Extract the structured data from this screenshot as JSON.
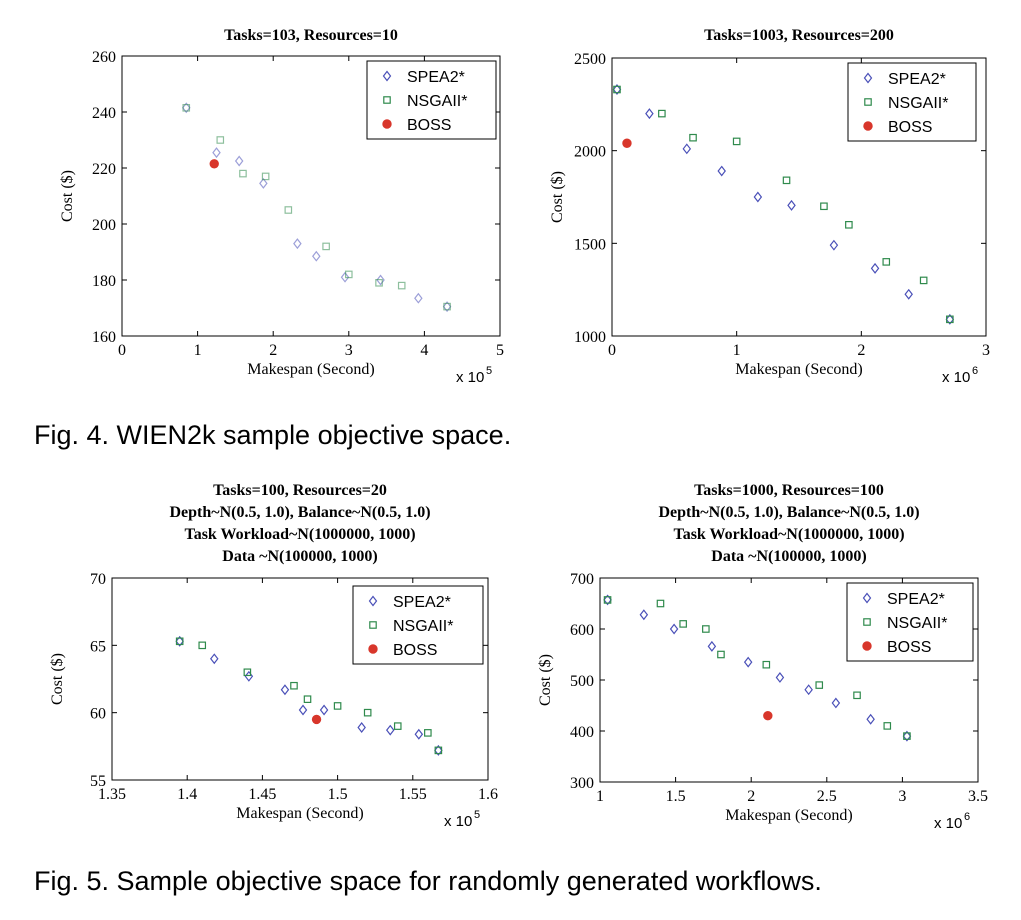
{
  "captions": {
    "fig4": "Fig. 4. WIEN2k sample objective space.",
    "fig5": "Fig. 5. Sample objective space for randomly generated workflows."
  },
  "colors": {
    "spea2": "#4a50b8",
    "nsgaii": "#2f8a4c",
    "boss": "#d8362b"
  },
  "chart_data": [
    {
      "type": "scatter",
      "title": [
        "Tasks=103, Resources=10"
      ],
      "xlabel": "Makespan (Second)",
      "ylabel": "Cost ($)",
      "x_multiplier": "x 10",
      "x_exponent": "5",
      "xlim": [
        0,
        5
      ],
      "ylim": [
        160,
        260
      ],
      "xticks": [
        0,
        1,
        2,
        3,
        4,
        5
      ],
      "yticks": [
        160,
        180,
        200,
        220,
        240,
        260
      ],
      "faded": true,
      "legend_position": "top-right",
      "series": [
        {
          "name": "SPEA2*",
          "marker": "diamond",
          "color": "#4a50b8",
          "points": [
            [
              0.85,
              241.5
            ],
            [
              1.25,
              225.5
            ],
            [
              1.55,
              222.5
            ],
            [
              1.87,
              214.5
            ],
            [
              2.32,
              193
            ],
            [
              2.57,
              188.5
            ],
            [
              2.95,
              181
            ],
            [
              3.42,
              180
            ],
            [
              3.92,
              173.5
            ],
            [
              4.3,
              170.5
            ]
          ]
        },
        {
          "name": "NSGAII*",
          "marker": "square",
          "color": "#2f8a4c",
          "points": [
            [
              0.85,
              241.5
            ],
            [
              1.3,
              230
            ],
            [
              1.6,
              218
            ],
            [
              1.9,
              217
            ],
            [
              2.2,
              205
            ],
            [
              2.7,
              192
            ],
            [
              3.0,
              182
            ],
            [
              3.4,
              179
            ],
            [
              3.7,
              178
            ],
            [
              4.3,
              170.5
            ]
          ]
        },
        {
          "name": "BOSS",
          "marker": "circle",
          "color": "#d8362b",
          "points": [
            [
              1.22,
              221.5
            ]
          ]
        }
      ]
    },
    {
      "type": "scatter",
      "title": [
        "Tasks=1003, Resources=200"
      ],
      "xlabel": "Makespan (Second)",
      "ylabel": "Cost ($)",
      "x_multiplier": "x 10",
      "x_exponent": "6",
      "xlim": [
        0,
        3
      ],
      "ylim": [
        1000,
        2500
      ],
      "xticks": [
        0,
        1,
        2,
        3
      ],
      "yticks": [
        1000,
        1500,
        2000,
        2500
      ],
      "faded": false,
      "legend_position": "top-right",
      "series": [
        {
          "name": "SPEA2*",
          "marker": "diamond",
          "color": "#4a50b8",
          "points": [
            [
              0.04,
              2330
            ],
            [
              0.3,
              2200
            ],
            [
              0.6,
              2010
            ],
            [
              0.88,
              1890
            ],
            [
              1.17,
              1750
            ],
            [
              1.44,
              1705
            ],
            [
              1.78,
              1490
            ],
            [
              2.11,
              1365
            ],
            [
              2.38,
              1225
            ],
            [
              2.71,
              1090
            ]
          ]
        },
        {
          "name": "NSGAII*",
          "marker": "square",
          "color": "#2f8a4c",
          "points": [
            [
              0.04,
              2330
            ],
            [
              0.4,
              2200
            ],
            [
              0.65,
              2070
            ],
            [
              1.0,
              2050
            ],
            [
              1.4,
              1840
            ],
            [
              1.7,
              1700
            ],
            [
              1.9,
              1600
            ],
            [
              2.2,
              1400
            ],
            [
              2.5,
              1300
            ],
            [
              2.71,
              1090
            ]
          ]
        },
        {
          "name": "BOSS",
          "marker": "circle",
          "color": "#d8362b",
          "points": [
            [
              0.12,
              2040
            ]
          ]
        }
      ]
    },
    {
      "type": "scatter",
      "title": [
        "Tasks=100, Resources=20",
        "Depth~N(0.5, 1.0), Balance~N(0.5, 1.0)",
        "Task Workload~N(1000000, 1000)",
        "Data ~N(100000, 1000)"
      ],
      "xlabel": "Makespan (Second)",
      "ylabel": "Cost ($)",
      "x_multiplier": "x 10",
      "x_exponent": "5",
      "xlim": [
        1.35,
        1.6
      ],
      "ylim": [
        55,
        70
      ],
      "xticks": [
        1.35,
        1.4,
        1.45,
        1.5,
        1.55,
        1.6
      ],
      "xticklabels": [
        "1.35",
        "1.4",
        "1.45",
        "1.5",
        "1.55",
        "1.6"
      ],
      "yticks": [
        55,
        60,
        65,
        70
      ],
      "faded": false,
      "legend_position": "top-right",
      "series": [
        {
          "name": "SPEA2*",
          "marker": "diamond",
          "color": "#4a50b8",
          "points": [
            [
              1.395,
              65.3
            ],
            [
              1.418,
              64.0
            ],
            [
              1.441,
              62.7
            ],
            [
              1.465,
              61.7
            ],
            [
              1.477,
              60.2
            ],
            [
              1.491,
              60.2
            ],
            [
              1.516,
              58.9
            ],
            [
              1.535,
              58.7
            ],
            [
              1.554,
              58.4
            ],
            [
              1.567,
              57.2
            ]
          ]
        },
        {
          "name": "NSGAII*",
          "marker": "square",
          "color": "#2f8a4c",
          "points": [
            [
              1.395,
              65.3
            ],
            [
              1.41,
              65.0
            ],
            [
              1.44,
              63.0
            ],
            [
              1.471,
              62.0
            ],
            [
              1.48,
              61.0
            ],
            [
              1.5,
              60.5
            ],
            [
              1.52,
              60.0
            ],
            [
              1.54,
              59.0
            ],
            [
              1.56,
              58.5
            ],
            [
              1.567,
              57.2
            ]
          ]
        },
        {
          "name": "BOSS",
          "marker": "circle",
          "color": "#d8362b",
          "points": [
            [
              1.486,
              59.5
            ]
          ]
        }
      ]
    },
    {
      "type": "scatter",
      "title": [
        "Tasks=1000, Resources=100",
        "Depth~N(0.5, 1.0), Balance~N(0.5, 1.0)",
        "Task Workload~N(1000000, 1000)",
        "Data ~N(100000, 1000)"
      ],
      "xlabel": "Makespan (Second)",
      "ylabel": "Cost ($)",
      "x_multiplier": "x 10",
      "x_exponent": "6",
      "xlim": [
        1,
        3.5
      ],
      "ylim": [
        300,
        700
      ],
      "xticks": [
        1,
        1.5,
        2,
        2.5,
        3,
        3.5
      ],
      "xticklabels": [
        "1",
        "1.5",
        "2",
        "2.5",
        "3",
        "3.5"
      ],
      "yticks": [
        300,
        400,
        500,
        600,
        700
      ],
      "faded": false,
      "legend_position": "top-right",
      "series": [
        {
          "name": "SPEA2*",
          "marker": "diamond",
          "color": "#4a50b8",
          "points": [
            [
              1.05,
              657
            ],
            [
              1.29,
              628
            ],
            [
              1.49,
              600
            ],
            [
              1.74,
              566
            ],
            [
              1.98,
              535
            ],
            [
              2.19,
              505
            ],
            [
              2.38,
              481
            ],
            [
              2.56,
              455
            ],
            [
              2.79,
              423
            ],
            [
              3.03,
              390
            ]
          ]
        },
        {
          "name": "NSGAII*",
          "marker": "square",
          "color": "#2f8a4c",
          "points": [
            [
              1.05,
              657
            ],
            [
              1.4,
              650
            ],
            [
              1.55,
              610
            ],
            [
              1.7,
              600
            ],
            [
              1.8,
              550
            ],
            [
              2.1,
              530
            ],
            [
              2.45,
              490
            ],
            [
              2.7,
              470
            ],
            [
              2.9,
              410
            ],
            [
              3.03,
              390
            ]
          ]
        },
        {
          "name": "BOSS",
          "marker": "circle",
          "color": "#d8362b",
          "points": [
            [
              2.11,
              430
            ]
          ]
        }
      ]
    }
  ]
}
